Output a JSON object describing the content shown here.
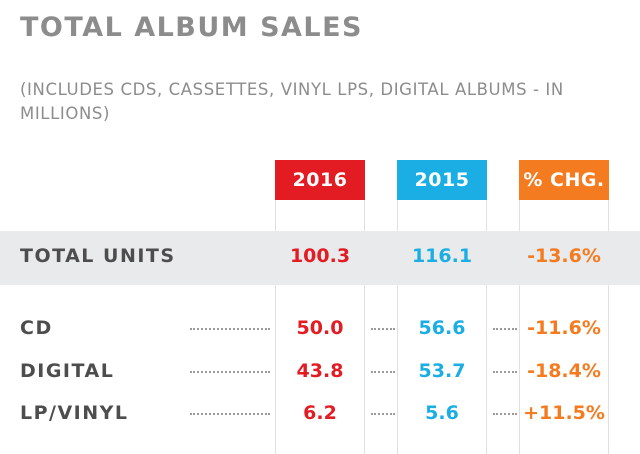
{
  "title": "TOTAL ALBUM SALES",
  "subtitle": "(INCLUDES CDS, CASSETTES, VINYL LPS, DIGITAL ALBUMS - IN MILLIONS)",
  "colors": {
    "y2016": "#e31b23",
    "y2015": "#1aaee5",
    "change": "#f47b20",
    "band": "#e9eaeb",
    "label": "#4d4d4d"
  },
  "chart_data": {
    "type": "table",
    "title": "TOTAL ALBUM SALES",
    "subtitle": "(INCLUDES CDS, CASSETTES, VINYL LPS, DIGITAL ALBUMS - IN MILLIONS)",
    "columns": [
      "2016",
      "2015",
      "% CHG."
    ],
    "rows": [
      {
        "label": "TOTAL UNITS",
        "values": [
          "100.3",
          "116.1",
          "-13.6%"
        ]
      },
      {
        "label": "CD",
        "values": [
          "50.0",
          "56.6",
          "-11.6%"
        ]
      },
      {
        "label": "DIGITAL",
        "values": [
          "43.8",
          "53.7",
          "-18.4%"
        ]
      },
      {
        "label": "LP/VINYL",
        "values": [
          "6.2",
          "5.6",
          "+11.5%"
        ]
      }
    ]
  }
}
